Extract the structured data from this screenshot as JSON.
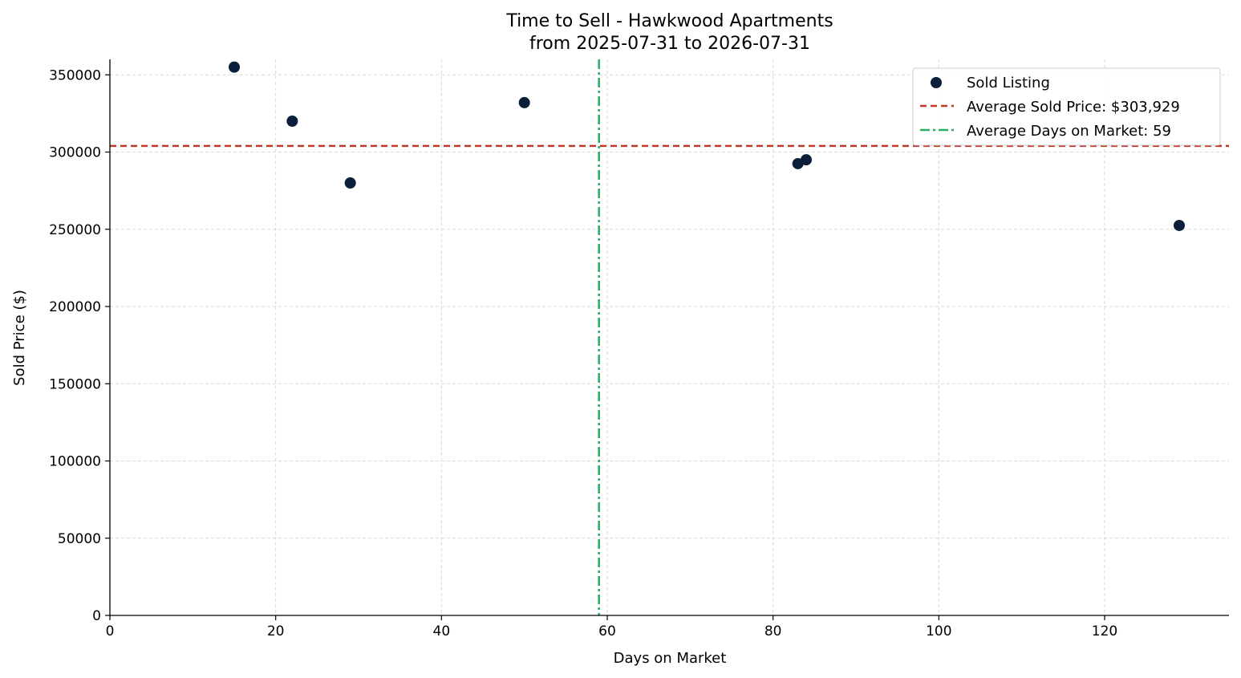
{
  "chart_data": {
    "type": "scatter",
    "title": "Time to Sell - Hawkwood Apartments",
    "subtitle": "from 2025-07-31 to 2026-07-31",
    "xlabel": "Days on Market",
    "ylabel": "Sold Price ($)",
    "xlim": [
      0,
      135
    ],
    "ylim": [
      0,
      360000
    ],
    "xticks": [
      0,
      20,
      40,
      60,
      80,
      100,
      120
    ],
    "yticks": [
      0,
      50000,
      100000,
      150000,
      200000,
      250000,
      300000,
      350000
    ],
    "grid": true,
    "legend_position": "top-right",
    "series": [
      {
        "name": "Sold Listing",
        "color": "#0b1f3a",
        "points": [
          {
            "x": 15,
            "y": 355000
          },
          {
            "x": 22,
            "y": 320000
          },
          {
            "x": 29,
            "y": 280000
          },
          {
            "x": 50,
            "y": 332000
          },
          {
            "x": 83,
            "y": 292500
          },
          {
            "x": 84,
            "y": 295000
          },
          {
            "x": 129,
            "y": 252500
          }
        ]
      }
    ],
    "reference_lines": [
      {
        "name": "Average Sold Price: $303,929",
        "orientation": "horizontal",
        "value": 303929,
        "color": "#c0392b",
        "style": "dashed"
      },
      {
        "name": "Average Days on Market: 59",
        "orientation": "vertical",
        "value": 59,
        "color": "#27ae60",
        "style": "dashdot"
      }
    ]
  }
}
